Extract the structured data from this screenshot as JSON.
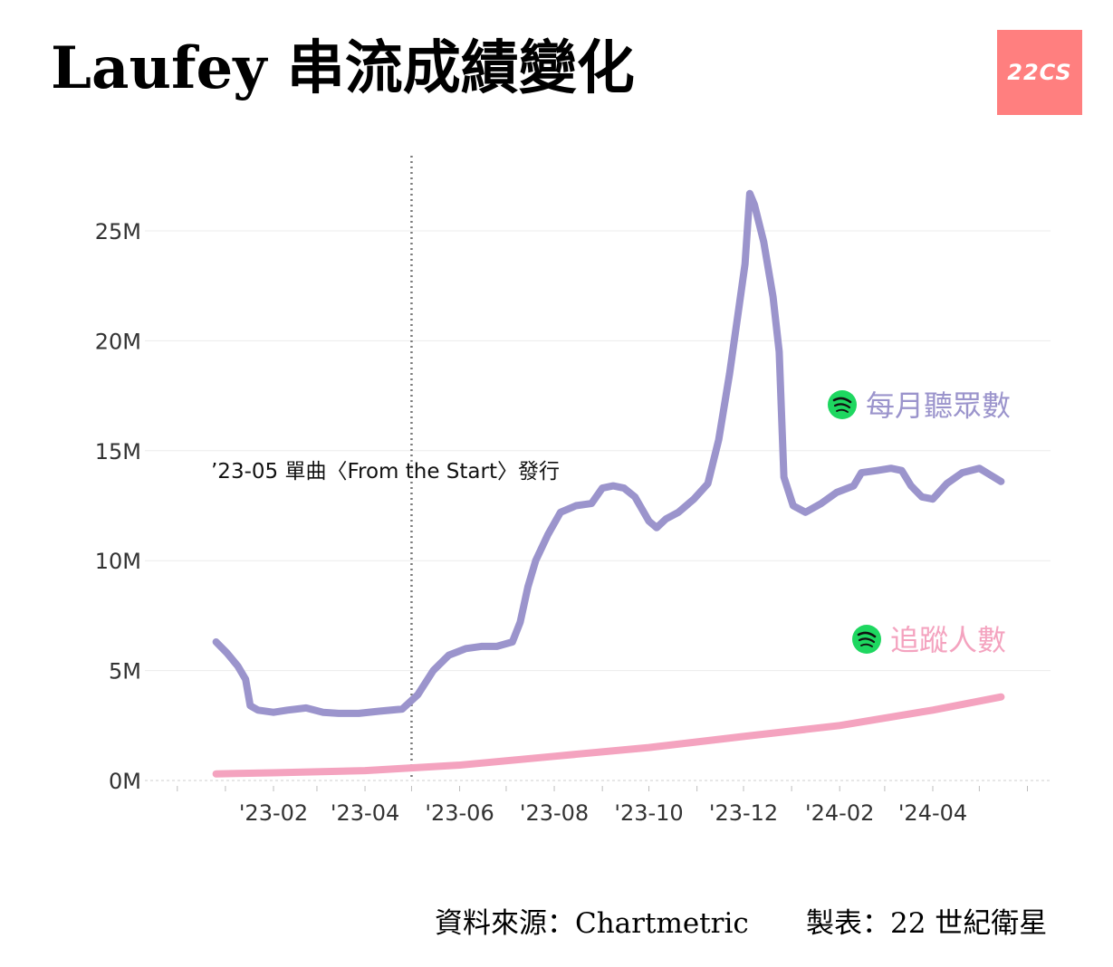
{
  "header": {
    "title": "Laufey 串流成績變化",
    "logo_text": "22CS"
  },
  "footer": {
    "source": "資料來源：Chartmetric",
    "maker": "製表：22 世紀衛星"
  },
  "chart_data": {
    "type": "line",
    "title": "Laufey 串流成績變化",
    "xlabel": "",
    "ylabel": "",
    "x_ticks": [
      "'23-02",
      "'23-04",
      "'23-06",
      "'23-08",
      "'23-10",
      "'23-12",
      "'24-02",
      "'24-04"
    ],
    "y_ticks": [
      "0M",
      "5M",
      "10M",
      "15M",
      "20M",
      "25M"
    ],
    "ylim": [
      0,
      27
    ],
    "grid": true,
    "annotation": {
      "x": "2023-05-01",
      "text": "’23-05 單曲〈From the Start〉發行"
    },
    "series": [
      {
        "name": "每月聽眾數",
        "color": "#9b94cc",
        "points": [
          [
            "2022-12-26",
            6.3
          ],
          [
            "2023-01-02",
            5.8
          ],
          [
            "2023-01-09",
            5.2
          ],
          [
            "2023-01-14",
            4.6
          ],
          [
            "2023-01-17",
            3.4
          ],
          [
            "2023-01-22",
            3.2
          ],
          [
            "2023-02-01",
            3.1
          ],
          [
            "2023-02-10",
            3.2
          ],
          [
            "2023-02-22",
            3.3
          ],
          [
            "2023-03-05",
            3.1
          ],
          [
            "2023-03-15",
            3.05
          ],
          [
            "2023-03-28",
            3.05
          ],
          [
            "2023-04-10",
            3.15
          ],
          [
            "2023-04-25",
            3.25
          ],
          [
            "2023-05-05",
            3.9
          ],
          [
            "2023-05-15",
            5.0
          ],
          [
            "2023-05-25",
            5.7
          ],
          [
            "2023-06-05",
            6.0
          ],
          [
            "2023-06-15",
            6.1
          ],
          [
            "2023-06-25",
            6.1
          ],
          [
            "2023-07-05",
            6.3
          ],
          [
            "2023-07-10",
            7.2
          ],
          [
            "2023-07-15",
            8.8
          ],
          [
            "2023-07-20",
            10.0
          ],
          [
            "2023-07-28",
            11.2
          ],
          [
            "2023-08-05",
            12.2
          ],
          [
            "2023-08-15",
            12.5
          ],
          [
            "2023-08-25",
            12.6
          ],
          [
            "2023-09-01",
            13.3
          ],
          [
            "2023-09-08",
            13.4
          ],
          [
            "2023-09-15",
            13.3
          ],
          [
            "2023-09-22",
            12.9
          ],
          [
            "2023-10-01",
            11.8
          ],
          [
            "2023-10-06",
            11.5
          ],
          [
            "2023-10-12",
            11.9
          ],
          [
            "2023-10-20",
            12.2
          ],
          [
            "2023-10-30",
            12.8
          ],
          [
            "2023-11-08",
            13.5
          ],
          [
            "2023-11-15",
            15.5
          ],
          [
            "2023-11-22",
            18.5
          ],
          [
            "2023-11-28",
            21.5
          ],
          [
            "2023-12-02",
            23.5
          ],
          [
            "2023-12-05",
            26.7
          ],
          [
            "2023-12-08",
            26.2
          ],
          [
            "2023-12-14",
            24.5
          ],
          [
            "2023-12-20",
            22.0
          ],
          [
            "2023-12-24",
            19.5
          ],
          [
            "2023-12-27",
            13.8
          ],
          [
            "2024-01-02",
            12.5
          ],
          [
            "2024-01-10",
            12.2
          ],
          [
            "2024-01-20",
            12.6
          ],
          [
            "2024-01-30",
            13.1
          ],
          [
            "2024-02-10",
            13.4
          ],
          [
            "2024-02-15",
            14.0
          ],
          [
            "2024-02-25",
            14.1
          ],
          [
            "2024-03-05",
            14.2
          ],
          [
            "2024-03-12",
            14.1
          ],
          [
            "2024-03-18",
            13.4
          ],
          [
            "2024-03-25",
            12.9
          ],
          [
            "2024-04-01",
            12.8
          ],
          [
            "2024-04-10",
            13.5
          ],
          [
            "2024-04-20",
            14.0
          ],
          [
            "2024-05-01",
            14.2
          ],
          [
            "2024-05-08",
            13.9
          ],
          [
            "2024-05-15",
            13.6
          ]
        ]
      },
      {
        "name": "追蹤人數",
        "color": "#f4a3bf",
        "points": [
          [
            "2022-12-26",
            0.3
          ],
          [
            "2023-02-01",
            0.35
          ],
          [
            "2023-04-01",
            0.45
          ],
          [
            "2023-06-01",
            0.7
          ],
          [
            "2023-08-01",
            1.1
          ],
          [
            "2023-10-01",
            1.5
          ],
          [
            "2023-12-01",
            2.0
          ],
          [
            "2024-02-01",
            2.5
          ],
          [
            "2024-04-01",
            3.2
          ],
          [
            "2024-05-15",
            3.8
          ]
        ]
      }
    ]
  }
}
